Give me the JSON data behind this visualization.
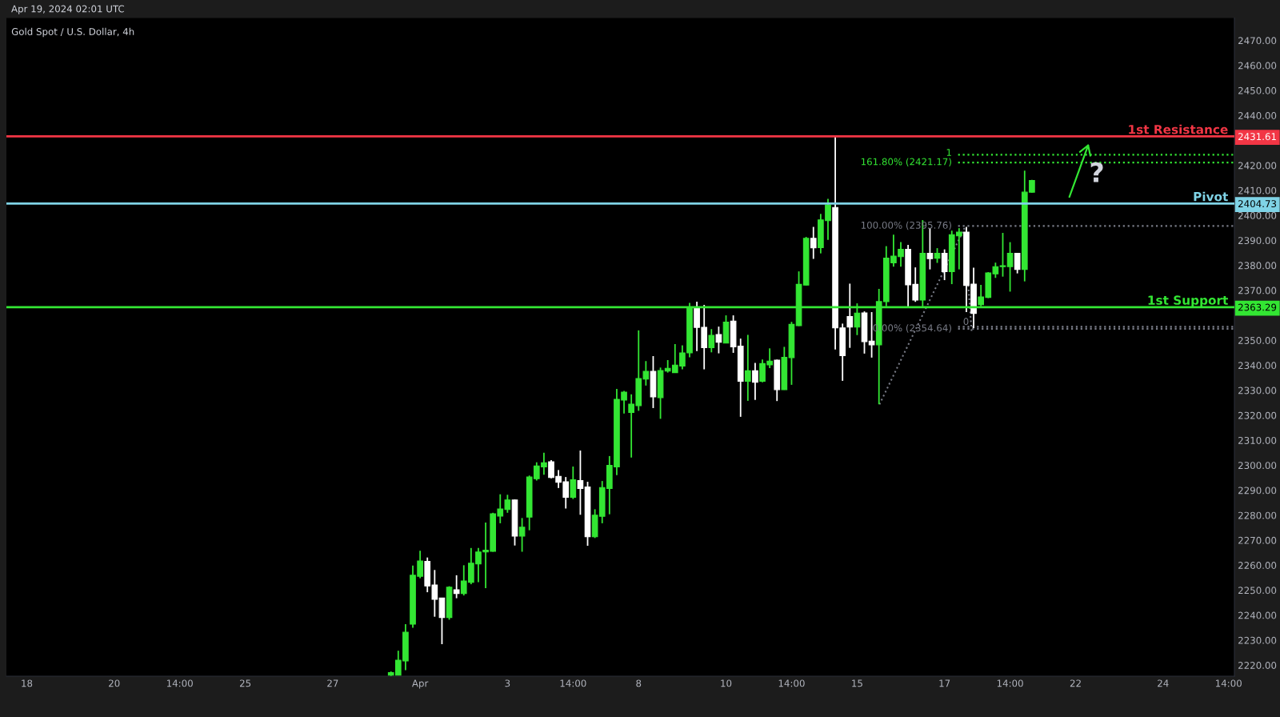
{
  "chart_data": {
    "type": "candlestick",
    "title": "Gold Spot / U.S. Dollar, 4h",
    "categories": [
      null,
      null,
      "18",
      null,
      null,
      null,
      null,
      null,
      null,
      null,
      null,
      null,
      null,
      null,
      "20",
      null,
      null,
      null,
      null,
      null,
      null,
      null,
      null,
      "14:00",
      null,
      null,
      null,
      null,
      null,
      null,
      null,
      null,
      "25",
      null,
      null,
      null,
      null,
      null,
      null,
      null,
      null,
      null,
      null,
      null,
      "27",
      null,
      null,
      null,
      null,
      null,
      null,
      null,
      null,
      null,
      null,
      null,
      "Apr",
      null,
      null,
      null,
      null,
      null,
      null,
      null,
      null,
      null,
      null,
      null,
      "3",
      null,
      null,
      null,
      null,
      null,
      null,
      null,
      null,
      "14:00",
      null,
      null,
      null,
      null,
      null,
      null,
      null,
      null,
      "8",
      null,
      null,
      null,
      null,
      null,
      null,
      null,
      null,
      null,
      null,
      null,
      "10",
      null,
      null,
      null,
      null,
      null,
      null,
      null,
      null,
      "14:00",
      null,
      null,
      null,
      null,
      null,
      null,
      null,
      null,
      "15",
      null,
      null,
      null,
      null,
      null,
      null,
      null,
      null,
      null,
      null,
      null,
      "17",
      null,
      null,
      null,
      null,
      null,
      null,
      null,
      null,
      "14:00",
      null,
      null,
      null,
      null,
      null,
      null,
      null,
      null,
      "22",
      null,
      null,
      null,
      null,
      null,
      null,
      null,
      null,
      null,
      null,
      null,
      "24",
      null,
      null,
      null,
      null,
      null,
      null,
      null,
      null,
      "14:00"
    ],
    "ohlc": [
      null,
      null,
      null,
      null,
      null,
      null,
      null,
      null,
      null,
      null,
      null,
      null,
      null,
      null,
      null,
      null,
      null,
      null,
      null,
      null,
      null,
      null,
      null,
      null,
      null,
      null,
      null,
      null,
      null,
      null,
      null,
      null,
      null,
      null,
      null,
      null,
      null,
      null,
      null,
      null,
      null,
      null,
      null,
      null,
      null,
      null,
      null,
      null,
      null,
      null,
      null,
      null,
      [
        2216,
        2217.5,
        2215.7,
        2217
      ],
      [
        2216,
        2225.8,
        2216,
        2222
      ],
      [
        2221.7,
        2236.4,
        2218,
        2233.2
      ],
      [
        2236.4,
        2259.9,
        2235,
        2256
      ],
      [
        2255.6,
        2265.8,
        2254.8,
        2261.7
      ],
      [
        2261.5,
        2263.1,
        2249.2,
        2251.7
      ],
      [
        2252.1,
        2258.1,
        2239.4,
        2246.4
      ],
      [
        2246.9,
        2246.9,
        2228.4,
        2239.1
      ],
      [
        2239.1,
        2251.6,
        2238.2,
        2251.2
      ],
      [
        2250.2,
        2256,
        2246.8,
        2248.7
      ],
      [
        2248.7,
        2260,
        2247.9,
        2253.7
      ],
      [
        2253.2,
        2266.9,
        2252.4,
        2260.8
      ],
      [
        2260.5,
        2266.9,
        2253.2,
        2265.3
      ],
      [
        2265.3,
        2277.1,
        2250.8,
        2266
      ],
      [
        2265.6,
        2281,
        2265.4,
        2280.6
      ],
      [
        2279.7,
        2288.4,
        2276.8,
        2282.5
      ],
      [
        2282.3,
        2288.2,
        2281,
        2286.1
      ],
      [
        2286.1,
        2286.3,
        2267.9,
        2271.7
      ],
      [
        2271.7,
        2278.9,
        2265.4,
        2275.2
      ],
      [
        2279.3,
        2295.9,
        2274,
        2295.3
      ],
      [
        2294.6,
        2301.2,
        2293.9,
        2299.7
      ],
      [
        2299.4,
        2305,
        2296.2,
        2301
      ],
      [
        2301.4,
        2302.1,
        2294.8,
        2295.1
      ],
      [
        2295.6,
        2298.1,
        2290.9,
        2293.2
      ],
      [
        2293.4,
        2295.3,
        2282.7,
        2287.2
      ],
      [
        2287.2,
        2299.5,
        2286.5,
        2294.2
      ],
      [
        2293.9,
        2305.9,
        2280.2,
        2290.7
      ],
      [
        2291.3,
        2293.4,
        2267.8,
        2271.4
      ],
      [
        2271.4,
        2282.4,
        2270.9,
        2280
      ],
      [
        2279.6,
        2293.7,
        2276.8,
        2291.1
      ],
      [
        2290.7,
        2303.7,
        2280.4,
        2300
      ],
      [
        2299.4,
        2330.6,
        2296.1,
        2326.4
      ],
      [
        2326.1,
        2329.8,
        2320.7,
        2329.3
      ],
      [
        2321.1,
        2328.4,
        2303.1,
        2324.5
      ],
      [
        2323.9,
        2354,
        2321.8,
        2334.7
      ],
      [
        2334.5,
        2341.7,
        2331.9,
        2337.6
      ],
      [
        2337.6,
        2343.7,
        2322.9,
        2327.4
      ],
      [
        2327.1,
        2339.1,
        2318.6,
        2337.9
      ],
      [
        2337.7,
        2342.1,
        2337.1,
        2338.8
      ],
      [
        2337.1,
        2348.5,
        2337,
        2340.1
      ],
      [
        2339.7,
        2348,
        2338.4,
        2345
      ],
      [
        2345,
        2365,
        2343.2,
        2363.2
      ],
      [
        2363.2,
        2365.5,
        2345.7,
        2355.2
      ],
      [
        2355.2,
        2364.2,
        2338.4,
        2347.1
      ],
      [
        2347.1,
        2354.5,
        2345.2,
        2352
      ],
      [
        2352.3,
        2355.5,
        2344.8,
        2349.2
      ],
      [
        2348.9,
        2360,
        2348.9,
        2357.3
      ],
      [
        2357.7,
        2360,
        2345,
        2347.4
      ],
      [
        2347.7,
        2350.7,
        2319.4,
        2333.6
      ],
      [
        2333.6,
        2352.2,
        2325.8,
        2337.8
      ],
      [
        2337.8,
        2341,
        2326.2,
        2333.2
      ],
      [
        2333.6,
        2342.3,
        2333.2,
        2340.7
      ],
      [
        2340.2,
        2346.8,
        2338.9,
        2341.7
      ],
      [
        2342.1,
        2342.3,
        2325.7,
        2330.3
      ],
      [
        2330.3,
        2347.4,
        2330.2,
        2343.2
      ],
      [
        2343.1,
        2357.4,
        2332.2,
        2356.4
      ],
      [
        2355.9,
        2377.6,
        2355.7,
        2372.4
      ],
      [
        2372.1,
        2391.4,
        2372,
        2390.8
      ],
      [
        2390.8,
        2395.4,
        2382.6,
        2387
      ],
      [
        2387.1,
        2400.6,
        2384.8,
        2398.2
      ],
      [
        2397.9,
        2406.6,
        2390.2,
        2404.2
      ],
      [
        2403.2,
        2431.6,
        2346.3,
        2355
      ],
      [
        2355,
        2356.7,
        2333.8,
        2343.9
      ],
      [
        2359.5,
        2372.7,
        2347,
        2355.3
      ],
      [
        2355.3,
        2364.8,
        2352.1,
        2360.9
      ],
      [
        2361,
        2361.6,
        2344.7,
        2349.5
      ],
      [
        2349.7,
        2361.3,
        2343.1,
        2348.2
      ],
      [
        2348.2,
        2370.6,
        2324.4,
        2365.5
      ],
      [
        2365.5,
        2387.7,
        2363.6,
        2382.9
      ],
      [
        2381,
        2392.3,
        2379.5,
        2383.7
      ],
      [
        2383.5,
        2389.3,
        2379.5,
        2386.4
      ],
      [
        2386.4,
        2388.2,
        2363.1,
        2372.2
      ],
      [
        2372.4,
        2379.2,
        2365.4,
        2366.1
      ],
      [
        2366.1,
        2398.1,
        2363.6,
        2384.8
      ],
      [
        2384.8,
        2394.9,
        2378.4,
        2382.7
      ],
      [
        2382.9,
        2386.9,
        2381,
        2384.8
      ],
      [
        2384.8,
        2386.4,
        2374.1,
        2377.5
      ],
      [
        2377.5,
        2393.9,
        2372.5,
        2392.3
      ],
      [
        2391.8,
        2394.9,
        2378.4,
        2393.3
      ],
      [
        2393.3,
        2395.4,
        2361.3,
        2372
      ],
      [
        2372.5,
        2379.1,
        2354.9,
        2360.8
      ],
      [
        2364.3,
        2372.2,
        2363.6,
        2367.4
      ],
      [
        2367.2,
        2377.3,
        2366.9,
        2377
      ],
      [
        2376.6,
        2381.1,
        2375,
        2379.5
      ],
      [
        2379.5,
        2393,
        2375.5,
        2379.9
      ],
      [
        2379.5,
        2389.3,
        2369.5,
        2384.8
      ],
      [
        2384.8,
        2385,
        2376.8,
        2378.4
      ],
      [
        2378.4,
        2417.9,
        2373.6,
        2409.3
      ],
      [
        2409.3,
        2414.2,
        2409.1,
        2414
      ],
      null,
      null,
      null,
      null,
      null,
      null,
      null,
      null,
      null,
      null,
      null,
      null,
      null,
      null,
      null,
      null,
      null,
      null,
      null,
      null,
      null,
      null,
      null,
      null,
      null,
      null,
      null
    ],
    "colors": [
      null,
      null,
      null,
      null,
      null,
      null,
      null,
      null,
      null,
      null,
      null,
      null,
      null,
      null,
      null,
      null,
      null,
      null,
      null,
      null,
      null,
      null,
      null,
      null,
      null,
      null,
      null,
      null,
      null,
      null,
      null,
      null,
      null,
      null,
      null,
      null,
      null,
      null,
      null,
      null,
      null,
      null,
      null,
      null,
      null,
      null,
      null,
      null,
      null,
      null,
      null,
      null,
      "#33e633",
      "#33e633",
      "#33e633",
      "#33e633",
      "#33e633",
      "#ffffff",
      "#ffffff",
      "#ffffff",
      "#33e633",
      "#ffffff",
      "#33e633",
      "#33e633",
      "#33e633",
      "#33e633",
      "#33e633",
      "#33e633",
      "#33e633",
      "#ffffff",
      "#33e633",
      "#33e633",
      "#33e633",
      "#33e633",
      "#ffffff",
      "#ffffff",
      "#ffffff",
      "#33e633",
      "#ffffff",
      "#ffffff",
      "#33e633",
      "#33e633",
      "#33e633",
      "#33e633",
      "#33e633",
      "#33e633",
      "#33e633",
      "#33e633",
      "#ffffff",
      "#33e633",
      "#33e633",
      "#33e633",
      "#33e633",
      "#33e633",
      "#ffffff",
      "#ffffff",
      "#33e633",
      "#ffffff",
      "#33e633",
      "#ffffff",
      "#ffffff",
      "#33e633",
      "#ffffff",
      "#33e633",
      "#33e633",
      "#ffffff",
      "#33e633",
      "#33e633",
      "#33e633",
      "#33e633",
      "#ffffff",
      "#33e633",
      "#33e633",
      "#ffffff",
      "#ffffff",
      "#ffffff",
      "#33e633",
      "#ffffff",
      "#ffffff",
      "#33e633",
      "#33e633",
      "#33e633",
      "#33e633",
      "#ffffff",
      "#ffffff",
      "#33e633",
      "#ffffff",
      "#33e633",
      "#ffffff",
      "#33e633",
      "#33e633",
      "#ffffff",
      "#ffffff",
      "#33e633",
      "#33e633",
      "#33e633",
      "#33e633",
      "#33e633",
      "#ffffff",
      "#33e633",
      "#33e633",
      null,
      null,
      null,
      null,
      null,
      null,
      null,
      null,
      null,
      null,
      null,
      null,
      null,
      null,
      null,
      null,
      null,
      null,
      null,
      null,
      null,
      null,
      null,
      null,
      null,
      null,
      null
    ],
    "ylim": [
      2215.6,
      2479
    ],
    "yticks": [
      {
        "value": 2220,
        "label": "2220.00"
      },
      {
        "value": 2230,
        "label": "2230.00"
      },
      {
        "value": 2240,
        "label": "2240.00"
      },
      {
        "value": 2250,
        "label": "2250.00"
      },
      {
        "value": 2260,
        "label": "2260.00"
      },
      {
        "value": 2270,
        "label": "2270.00"
      },
      {
        "value": 2280,
        "label": "2280.00"
      },
      {
        "value": 2290,
        "label": "2290.00"
      },
      {
        "value": 2300,
        "label": "2300.00"
      },
      {
        "value": 2310,
        "label": "2310.00"
      },
      {
        "value": 2320,
        "label": "2320.00"
      },
      {
        "value": 2330,
        "label": "2330.00"
      },
      {
        "value": 2340,
        "label": "2340.00"
      },
      {
        "value": 2350,
        "label": "2350.00"
      },
      {
        "value": 2363.29,
        "label": "2363.29"
      },
      {
        "value": 2370,
        "label": "2370.00"
      },
      {
        "value": 2380,
        "label": "2380.00"
      },
      {
        "value": 2390,
        "label": "2390.00"
      },
      {
        "value": 2400,
        "label": "2400.00"
      },
      {
        "value": 2404.73,
        "label": "2404.73"
      },
      {
        "value": 2410,
        "label": "2410.00"
      },
      {
        "value": 2420,
        "label": "2420.00"
      },
      {
        "value": 2431.61,
        "label": "2431.61"
      },
      {
        "value": 2440,
        "label": "2440.00"
      },
      {
        "value": 2450,
        "label": "2450.00"
      },
      {
        "value": 2460,
        "label": "2460.00"
      },
      {
        "value": 2470,
        "label": "2470.00"
      }
    ],
    "ref_lines": [
      {
        "axis": "y",
        "value": 2431.61,
        "label": "1st Resistance",
        "color": "#f23645",
        "line_style": "solid"
      },
      {
        "axis": "y",
        "value": 2404.73,
        "label": "Pivot",
        "color": "#7fd3e6",
        "line_style": "solid"
      },
      {
        "axis": "y",
        "value": 2363.29,
        "label": "1st Support",
        "color": "#33e633",
        "line_style": "solid"
      },
      {
        "axis": "y",
        "value": 2424.3,
        "color": "#33e633",
        "line_style": "dotted"
      },
      {
        "axis": "y",
        "value": 2421.17,
        "label": "161.80% (2421.17)",
        "color": "#33e633",
        "line_style": "dotted"
      },
      {
        "axis": "y",
        "value": 2395.76,
        "label": "100.00% (2395.76)",
        "color": "#787b86",
        "line_style": "dotted"
      },
      {
        "axis": "y",
        "value": 2355.4,
        "color": "#787b86",
        "line_style": "dotted"
      },
      {
        "axis": "y",
        "value": 2354.64,
        "label": "0.00% (2354.64)",
        "color": "#787b86",
        "line_style": "dotted"
      }
    ],
    "annotations": [
      "Apr 19, 2024 02:01 UTC",
      "?",
      "1",
      {
        "text": "0",
        "y": 2355.4
      }
    ],
    "grid": false
  }
}
